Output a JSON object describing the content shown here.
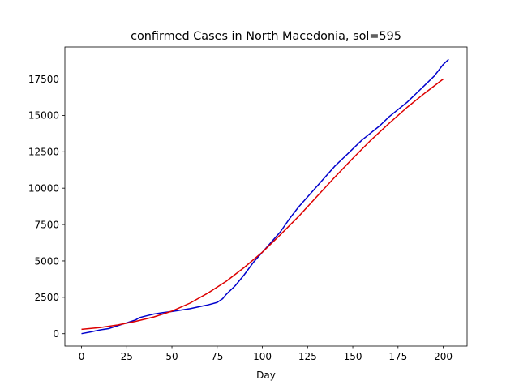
{
  "chart_data": {
    "type": "line",
    "title": "confirmed Cases in North Macedonia, sol=595",
    "xlabel": "Day",
    "ylabel": "",
    "xlim": [
      -9.2,
      213.2
    ],
    "ylim": [
      -850,
      19700
    ],
    "xticks": [
      0,
      25,
      50,
      75,
      100,
      125,
      150,
      175,
      200
    ],
    "yticks": [
      0,
      2500,
      5000,
      7500,
      10000,
      12500,
      15000,
      17500
    ],
    "grid": false,
    "legend": "none",
    "series": [
      {
        "color": "#0000cc",
        "x": [
          0,
          5,
          10,
          15,
          20,
          25,
          30,
          32,
          35,
          40,
          45,
          50,
          55,
          60,
          65,
          70,
          75,
          78,
          80,
          85,
          90,
          95,
          100,
          105,
          110,
          115,
          120,
          125,
          130,
          135,
          140,
          145,
          150,
          155,
          160,
          165,
          170,
          175,
          180,
          185,
          190,
          195,
          200,
          203
        ],
        "y": [
          0,
          120,
          250,
          350,
          550,
          750,
          950,
          1100,
          1200,
          1350,
          1450,
          1520,
          1620,
          1720,
          1850,
          1980,
          2150,
          2400,
          2700,
          3300,
          4050,
          4900,
          5600,
          6300,
          7000,
          7900,
          8700,
          9400,
          10100,
          10800,
          11500,
          12100,
          12700,
          13300,
          13800,
          14300,
          14900,
          15400,
          15900,
          16500,
          17100,
          17700,
          18500,
          18850
        ]
      },
      {
        "color": "#dd0000",
        "x": [
          0,
          10,
          20,
          30,
          40,
          50,
          60,
          70,
          80,
          90,
          100,
          110,
          120,
          130,
          140,
          150,
          160,
          170,
          180,
          190,
          200
        ],
        "y": [
          300,
          420,
          600,
          850,
          1150,
          1550,
          2100,
          2800,
          3600,
          4550,
          5600,
          6800,
          8050,
          9400,
          10750,
          12050,
          13300,
          14450,
          15550,
          16550,
          17500
        ]
      }
    ]
  }
}
